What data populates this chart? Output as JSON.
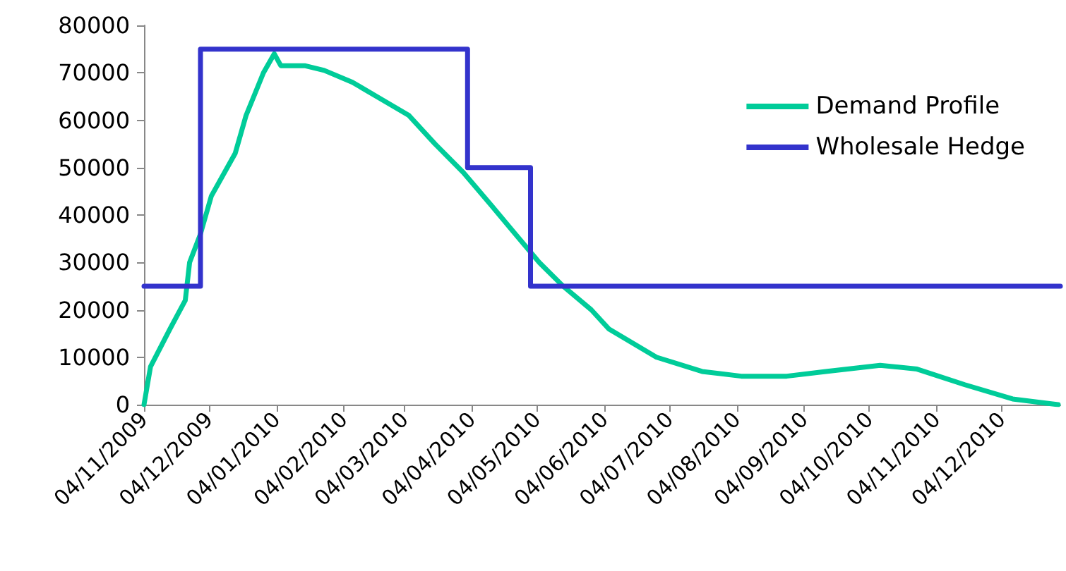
{
  "chart_data": {
    "type": "line",
    "xlim": [
      "2009-11-04",
      "2010-12-31"
    ],
    "xticks": [
      {
        "value": "2009-11-04",
        "label": "04/11/2009"
      },
      {
        "value": "2009-12-04",
        "label": "04/12/2009"
      },
      {
        "value": "2010-01-04",
        "label": "04/01/2010"
      },
      {
        "value": "2010-02-04",
        "label": "04/02/2010"
      },
      {
        "value": "2010-03-04",
        "label": "04/03/2010"
      },
      {
        "value": "2010-04-04",
        "label": "04/04/2010"
      },
      {
        "value": "2010-05-04",
        "label": "04/05/2010"
      },
      {
        "value": "2010-06-04",
        "label": "04/06/2010"
      },
      {
        "value": "2010-07-04",
        "label": "04/07/2010"
      },
      {
        "value": "2010-08-04",
        "label": "04/08/2010"
      },
      {
        "value": "2010-09-04",
        "label": "04/09/2010"
      },
      {
        "value": "2010-10-04",
        "label": "04/10/2010"
      },
      {
        "value": "2010-11-04",
        "label": "04/11/2010"
      },
      {
        "value": "2010-12-04",
        "label": "04/12/2010"
      }
    ],
    "ylim": [
      0,
      80000
    ],
    "yticks": [
      0,
      10000,
      20000,
      30000,
      40000,
      50000,
      60000,
      70000,
      80000
    ],
    "grid": false,
    "legend": "top right",
    "marker": "none",
    "series": [
      {
        "name": "Demand Profile",
        "color": "#00cc99",
        "x": [
          "2009-11-04",
          "2009-11-07",
          "2009-11-16",
          "2009-11-23",
          "2009-11-25",
          "2009-11-30",
          "2009-12-05",
          "2009-12-16",
          "2009-12-21",
          "2009-12-29",
          "2010-01-03",
          "2010-01-06",
          "2010-01-17",
          "2010-01-26",
          "2010-02-08",
          "2010-02-21",
          "2010-03-06",
          "2010-03-18",
          "2010-03-31",
          "2010-04-13",
          "2010-04-24",
          "2010-05-05",
          "2010-05-16",
          "2010-05-29",
          "2010-06-06",
          "2010-06-28",
          "2010-07-19",
          "2010-08-06",
          "2010-08-27",
          "2010-09-14",
          "2010-10-09",
          "2010-10-26",
          "2010-11-17",
          "2010-12-09",
          "2010-12-30"
        ],
        "values": [
          0,
          8000,
          16000,
          22000,
          30000,
          36000,
          44000,
          53000,
          61000,
          70000,
          74000,
          71500,
          71500,
          70500,
          68000,
          64500,
          61000,
          55000,
          49000,
          42000,
          36000,
          30000,
          25000,
          20000,
          16000,
          10000,
          7000,
          6000,
          6000,
          7000,
          8300,
          7500,
          4200,
          1200,
          0
        ]
      },
      {
        "name": "Wholesale Hedge",
        "type": "step",
        "color": "#3333cc",
        "x": [
          "2009-11-04",
          "2009-11-30",
          "2010-04-02",
          "2010-05-01",
          "2010-12-31"
        ],
        "values": [
          25000,
          75000,
          50000,
          25000,
          25000
        ]
      }
    ]
  }
}
